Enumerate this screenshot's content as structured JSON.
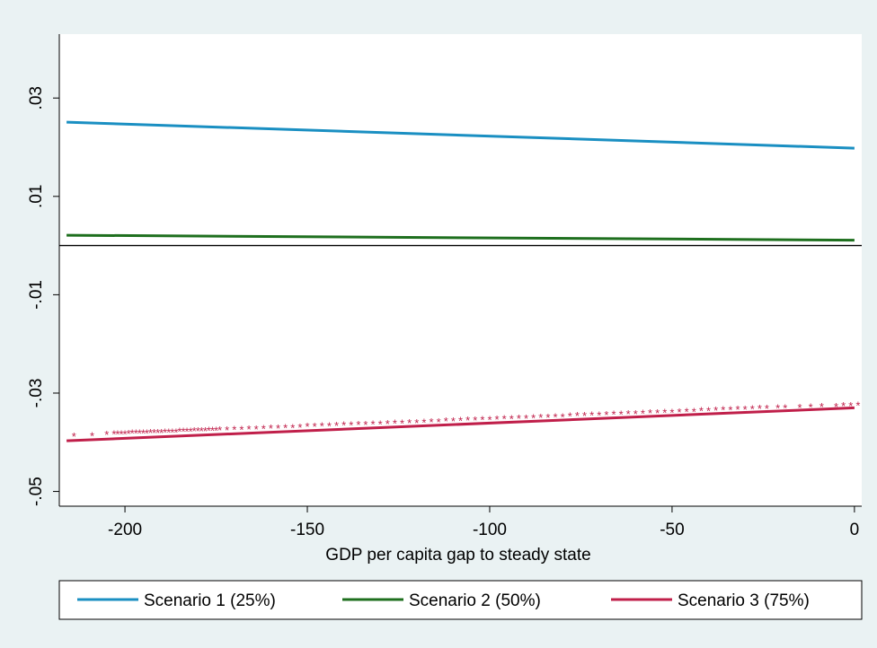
{
  "chart_data": {
    "type": "line",
    "title": "",
    "xlabel": "GDP per capita gap to steady state",
    "ylabel": "",
    "xlim": [
      -218,
      2
    ],
    "ylim": [
      -0.053,
      0.043
    ],
    "x_ticks": [
      -200,
      -150,
      -100,
      -50,
      0
    ],
    "x_tick_labels": [
      "-200",
      "-150",
      "-100",
      "-50",
      "0"
    ],
    "y_ticks": [
      0.03,
      0.01,
      -0.01,
      -0.03,
      -0.05
    ],
    "y_tick_labels": [
      ".03",
      ".01",
      "-.01",
      "-.03",
      "-.05"
    ],
    "zero_line": 0,
    "grid": false,
    "legend_position": "bottom",
    "series": [
      {
        "name": "Scenario 1 (25%)",
        "color": "#1a8fc2",
        "x": [
          -216,
          0
        ],
        "y": [
          0.0251,
          0.0198
        ]
      },
      {
        "name": "Scenario 2 (50%)",
        "color": "#1e6f1e",
        "x": [
          -216,
          0
        ],
        "y": [
          0.0021,
          0.0011
        ]
      },
      {
        "name": "Scenario 3 (75%)",
        "color": "#c01f4a",
        "x": [
          -216,
          0
        ],
        "y": [
          -0.0397,
          -0.033
        ]
      }
    ],
    "scatter": {
      "color": "#c01f4a",
      "marker": "*",
      "x": [
        -214,
        -209,
        -205,
        -203,
        -202,
        -201,
        -200,
        -199,
        -198,
        -197,
        -196,
        -195,
        -194,
        -193,
        -192,
        -191,
        -190,
        -189,
        -188,
        -187,
        -186,
        -185,
        -184,
        -183,
        -182,
        -181,
        -180,
        -179,
        -178,
        -177,
        -176,
        -175,
        -174,
        -172,
        -170,
        -168,
        -166,
        -164,
        -162,
        -160,
        -158,
        -156,
        -154,
        -152,
        -150,
        -148,
        -146,
        -144,
        -142,
        -140,
        -138,
        -136,
        -134,
        -132,
        -130,
        -128,
        -126,
        -124,
        -122,
        -120,
        -118,
        -116,
        -114,
        -112,
        -110,
        -108,
        -106,
        -104,
        -102,
        -100,
        -98,
        -96,
        -94,
        -92,
        -90,
        -88,
        -86,
        -84,
        -82,
        -80,
        -78,
        -76,
        -74,
        -72,
        -70,
        -68,
        -66,
        -64,
        -62,
        -60,
        -58,
        -56,
        -54,
        -52,
        -50,
        -48,
        -46,
        -44,
        -42,
        -40,
        -38,
        -36,
        -34,
        -32,
        -30,
        -28,
        -26,
        -24,
        -21,
        -19,
        -15,
        -12,
        -9,
        -5,
        -3,
        -1,
        1
      ],
      "y": [
        -0.0388,
        -0.0387,
        -0.0384,
        -0.0383,
        -0.0383,
        -0.0383,
        -0.0383,
        -0.0382,
        -0.0381,
        -0.0381,
        -0.0381,
        -0.0381,
        -0.0381,
        -0.038,
        -0.038,
        -0.038,
        -0.038,
        -0.0379,
        -0.0379,
        -0.0379,
        -0.0379,
        -0.0378,
        -0.0378,
        -0.0378,
        -0.0378,
        -0.0377,
        -0.0377,
        -0.0377,
        -0.0377,
        -0.0376,
        -0.0376,
        -0.0376,
        -0.0375,
        -0.0375,
        -0.0374,
        -0.0374,
        -0.0373,
        -0.0373,
        -0.0372,
        -0.0371,
        -0.0371,
        -0.037,
        -0.037,
        -0.0369,
        -0.0368,
        -0.0368,
        -0.0367,
        -0.0367,
        -0.0366,
        -0.0365,
        -0.0365,
        -0.0364,
        -0.0364,
        -0.0363,
        -0.0363,
        -0.0362,
        -0.0361,
        -0.0361,
        -0.036,
        -0.036,
        -0.0359,
        -0.0358,
        -0.0358,
        -0.0357,
        -0.0357,
        -0.0356,
        -0.0355,
        -0.0355,
        -0.0354,
        -0.0354,
        -0.0353,
        -0.0352,
        -0.0352,
        -0.0351,
        -0.0351,
        -0.035,
        -0.0349,
        -0.0349,
        -0.0348,
        -0.0348,
        -0.0347,
        -0.0346,
        -0.0346,
        -0.0345,
        -0.0345,
        -0.0344,
        -0.0343,
        -0.0343,
        -0.0342,
        -0.0342,
        -0.0341,
        -0.034,
        -0.034,
        -0.0339,
        -0.0339,
        -0.0338,
        -0.0337,
        -0.0337,
        -0.0336,
        -0.0336,
        -0.0335,
        -0.0334,
        -0.0334,
        -0.0333,
        -0.0333,
        -0.0332,
        -0.0331,
        -0.0331,
        -0.033,
        -0.033,
        -0.0329,
        -0.0328,
        -0.0327,
        -0.0327,
        -0.0326,
        -0.0326,
        -0.0325
      ]
    }
  }
}
